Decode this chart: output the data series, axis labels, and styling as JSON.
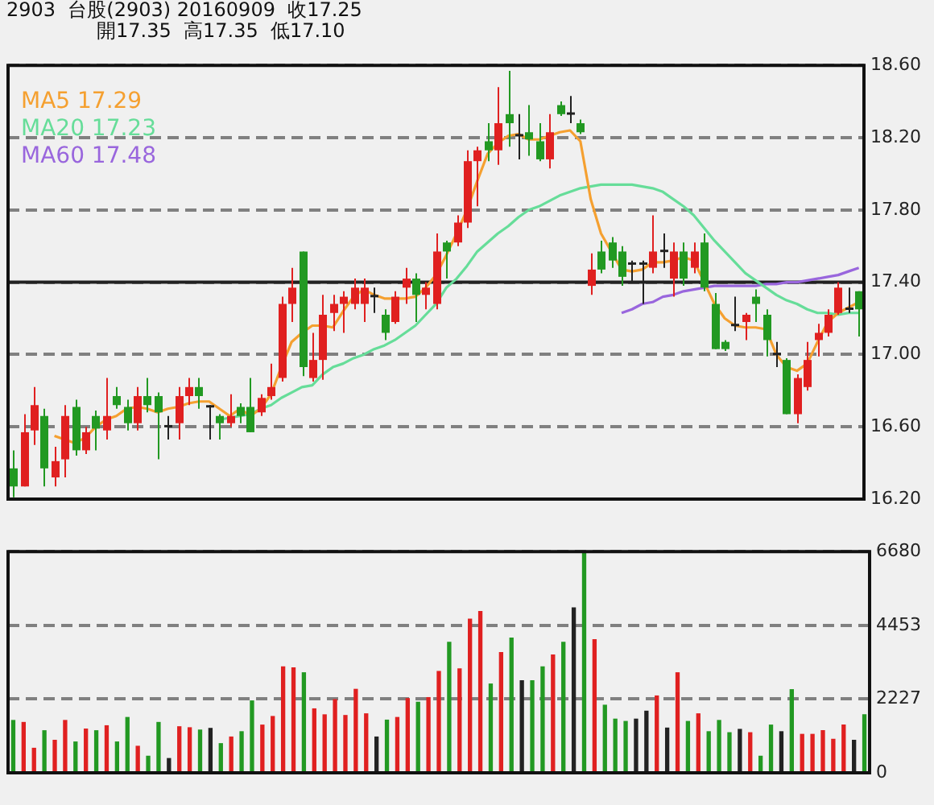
{
  "chart_data": [
    {
      "type": "candlestick",
      "title": "2903  台股(2903) 20160909  收17.25",
      "subtitle": "開17.35  高17.35  低17.10",
      "categories": [
        null,
        null,
        null,
        null,
        null,
        null,
        null,
        null,
        null,
        null,
        null,
        null,
        null,
        null,
        null,
        null,
        null,
        null,
        null,
        null,
        null,
        null,
        null,
        null,
        null,
        null,
        null,
        null,
        null,
        null,
        null,
        null,
        null,
        null,
        null,
        null,
        null,
        null,
        null,
        null,
        null,
        null,
        null,
        null,
        null,
        null,
        null,
        null,
        null,
        null,
        null,
        null,
        null,
        null,
        null,
        null,
        null,
        null,
        null,
        null,
        null,
        null,
        null,
        null,
        null,
        null,
        null,
        null,
        null,
        null,
        null,
        null,
        null,
        null,
        null,
        null,
        null,
        null,
        null,
        null,
        null,
        null,
        null
      ],
      "ohlc": [
        [
          16.37,
          16.47,
          16.21,
          16.27
        ],
        [
          16.27,
          16.67,
          16.27,
          16.57
        ],
        [
          16.58,
          16.82,
          16.5,
          16.72
        ],
        [
          16.66,
          16.7,
          16.27,
          16.37
        ],
        [
          16.32,
          16.49,
          16.27,
          16.41
        ],
        [
          16.42,
          16.72,
          16.32,
          16.66
        ],
        [
          16.71,
          16.75,
          16.44,
          16.47
        ],
        [
          16.47,
          16.6,
          16.45,
          16.57
        ],
        [
          16.66,
          16.69,
          16.47,
          16.59
        ],
        [
          16.58,
          16.87,
          16.53,
          16.66
        ],
        [
          16.77,
          16.82,
          16.7,
          16.72
        ],
        [
          16.71,
          16.75,
          16.58,
          16.62
        ],
        [
          16.62,
          16.82,
          16.58,
          16.77
        ],
        [
          16.77,
          16.87,
          16.68,
          16.72
        ],
        [
          16.77,
          16.79,
          16.42,
          16.68
        ],
        [
          16.6,
          16.66,
          16.53,
          16.61
        ],
        [
          16.62,
          16.82,
          16.53,
          16.77
        ],
        [
          16.77,
          16.87,
          16.72,
          16.82
        ],
        [
          16.82,
          16.87,
          16.7,
          16.77
        ],
        [
          16.71,
          16.72,
          16.53,
          16.72
        ],
        [
          16.66,
          16.67,
          16.53,
          16.62
        ],
        [
          16.62,
          16.78,
          16.6,
          16.66
        ],
        [
          16.71,
          16.73,
          16.62,
          16.66
        ],
        [
          16.71,
          16.87,
          16.57,
          16.57
        ],
        [
          16.68,
          16.78,
          16.66,
          16.76
        ],
        [
          16.77,
          16.95,
          16.75,
          16.82
        ],
        [
          16.87,
          17.32,
          16.85,
          17.28
        ],
        [
          17.28,
          17.48,
          17.18,
          17.37
        ],
        [
          17.57,
          17.57,
          16.88,
          16.93
        ],
        [
          16.87,
          17.12,
          16.85,
          16.97
        ],
        [
          16.97,
          17.33,
          16.86,
          17.22
        ],
        [
          17.23,
          17.33,
          17.13,
          17.28
        ],
        [
          17.28,
          17.35,
          17.12,
          17.32
        ],
        [
          17.28,
          17.42,
          17.25,
          17.37
        ],
        [
          17.28,
          17.42,
          17.18,
          17.37
        ],
        [
          17.32,
          17.37,
          17.23,
          17.33
        ],
        [
          17.22,
          17.25,
          17.08,
          17.12
        ],
        [
          17.18,
          17.35,
          17.17,
          17.32
        ],
        [
          17.37,
          17.48,
          17.28,
          17.42
        ],
        [
          17.42,
          17.45,
          17.18,
          17.33
        ],
        [
          17.33,
          17.4,
          17.25,
          17.37
        ],
        [
          17.28,
          17.67,
          17.25,
          17.57
        ],
        [
          17.62,
          17.63,
          17.42,
          17.57
        ],
        [
          17.62,
          17.77,
          17.6,
          17.73
        ],
        [
          17.73,
          18.13,
          17.7,
          18.07
        ],
        [
          18.07,
          18.15,
          17.82,
          18.13
        ],
        [
          18.18,
          18.28,
          18.07,
          18.13
        ],
        [
          18.13,
          18.48,
          18.05,
          18.28
        ],
        [
          18.33,
          18.57,
          18.15,
          18.28
        ],
        [
          18.21,
          18.33,
          18.08,
          18.22
        ],
        [
          18.23,
          18.38,
          18.1,
          18.19
        ],
        [
          18.18,
          18.28,
          18.07,
          18.08
        ],
        [
          18.08,
          18.33,
          18.03,
          18.23
        ],
        [
          18.38,
          18.4,
          18.32,
          18.33
        ],
        [
          18.33,
          18.43,
          18.28,
          18.34
        ],
        [
          18.28,
          18.3,
          18.22,
          18.23
        ],
        [
          17.38,
          17.56,
          17.33,
          17.47
        ],
        [
          17.57,
          17.63,
          17.45,
          17.47
        ],
        [
          17.62,
          17.65,
          17.48,
          17.52
        ],
        [
          17.57,
          17.6,
          17.38,
          17.43
        ],
        [
          17.5,
          17.52,
          17.4,
          17.51
        ],
        [
          17.5,
          17.52,
          17.28,
          17.51
        ],
        [
          17.48,
          17.77,
          17.45,
          17.57
        ],
        [
          17.57,
          17.67,
          17.48,
          17.58
        ],
        [
          17.42,
          17.62,
          17.32,
          17.57
        ],
        [
          17.57,
          17.62,
          17.38,
          17.42
        ],
        [
          17.48,
          17.62,
          17.45,
          17.57
        ],
        [
          17.62,
          17.67,
          17.35,
          17.37
        ],
        [
          17.28,
          17.34,
          17.03,
          17.03
        ],
        [
          17.07,
          17.08,
          17.02,
          17.03
        ],
        [
          17.16,
          17.32,
          17.13,
          17.17
        ],
        [
          17.18,
          17.23,
          17.08,
          17.22
        ],
        [
          17.32,
          17.36,
          17.18,
          17.28
        ],
        [
          17.22,
          17.25,
          16.99,
          17.08
        ],
        [
          17.0,
          17.07,
          16.93,
          17.01
        ],
        [
          16.97,
          16.98,
          16.67,
          16.67
        ],
        [
          16.67,
          16.89,
          16.62,
          16.87
        ],
        [
          16.82,
          17.07,
          16.8,
          16.97
        ],
        [
          17.08,
          17.17,
          16.99,
          17.12
        ],
        [
          17.12,
          17.25,
          17.1,
          17.22
        ],
        [
          17.23,
          17.4,
          17.22,
          17.37
        ],
        [
          17.25,
          17.37,
          17.23,
          17.26
        ],
        [
          17.35,
          17.35,
          17.1,
          17.25
        ]
      ],
      "colors": [
        "#229922",
        "#e02020",
        "#e02020",
        "#229922",
        "#e02020",
        "#e02020",
        "#229922",
        "#e02020",
        "#229922",
        "#e02020",
        "#229922",
        "#229922",
        "#e02020",
        "#229922",
        "#229922",
        "#222222",
        "#e02020",
        "#e02020",
        "#229922",
        "#222222",
        "#229922",
        "#e02020",
        "#229922",
        "#229922",
        "#e02020",
        "#e02020",
        "#e02020",
        "#e02020",
        "#229922",
        "#e02020",
        "#e02020",
        "#e02020",
        "#e02020",
        "#e02020",
        "#e02020",
        "#222222",
        "#229922",
        "#e02020",
        "#e02020",
        "#229922",
        "#e02020",
        "#e02020",
        "#229922",
        "#e02020",
        "#e02020",
        "#e02020",
        "#229922",
        "#e02020",
        "#229922",
        "#222222",
        "#229922",
        "#229922",
        "#e02020",
        "#229922",
        "#222222",
        "#229922",
        "#e02020",
        "#229922",
        "#229922",
        "#229922",
        "#222222",
        "#222222",
        "#e02020",
        "#222222",
        "#e02020",
        "#229922",
        "#e02020",
        "#229922",
        "#229922",
        "#229922",
        "#222222",
        "#e02020",
        "#229922",
        "#229922",
        "#222222",
        "#229922",
        "#e02020",
        "#e02020",
        "#e02020",
        "#e02020",
        "#e02020",
        "#222222",
        "#229922"
      ],
      "series": [
        {
          "type": "line",
          "name": "MA5 17.29",
          "color": "#f5a030",
          "values": [
            null,
            null,
            null,
            null,
            16.55,
            16.53,
            16.51,
            16.54,
            16.6,
            16.64,
            16.66,
            16.7,
            16.71,
            16.7,
            16.68,
            16.7,
            16.71,
            16.73,
            16.74,
            16.74,
            16.7,
            16.66,
            16.7,
            16.66,
            16.7,
            16.78,
            16.93,
            17.07,
            17.12,
            17.16,
            17.16,
            17.15,
            17.24,
            17.32,
            17.36,
            17.33,
            17.31,
            17.31,
            17.31,
            17.32,
            17.37,
            17.44,
            17.55,
            17.67,
            17.8,
            17.96,
            18.11,
            18.17,
            18.21,
            18.22,
            18.19,
            18.19,
            18.21,
            18.23,
            18.24,
            18.18,
            17.86,
            17.67,
            17.57,
            17.47,
            17.46,
            17.47,
            17.51,
            17.51,
            17.52,
            17.54,
            17.52,
            17.4,
            17.28,
            17.2,
            17.16,
            17.15,
            17.15,
            17.14,
            17.0,
            16.93,
            16.91,
            16.95,
            17.07,
            17.18,
            17.23,
            17.26,
            17.29
          ]
        },
        {
          "type": "line",
          "name": "MA20 17.23",
          "color": "#66dd99",
          "values": [
            null,
            null,
            null,
            null,
            null,
            null,
            null,
            null,
            null,
            null,
            null,
            null,
            null,
            null,
            null,
            null,
            null,
            null,
            null,
            null,
            16.64,
            16.65,
            16.66,
            16.67,
            16.7,
            16.72,
            16.76,
            16.79,
            16.82,
            16.83,
            16.89,
            16.93,
            16.95,
            16.98,
            17.0,
            17.03,
            17.05,
            17.08,
            17.12,
            17.16,
            17.22,
            17.28,
            17.37,
            17.42,
            17.49,
            17.57,
            17.62,
            17.67,
            17.71,
            17.76,
            17.8,
            17.82,
            17.85,
            17.88,
            17.9,
            17.92,
            17.93,
            17.94,
            17.94,
            17.94,
            17.94,
            17.93,
            17.92,
            17.9,
            17.86,
            17.82,
            17.77,
            17.7,
            17.63,
            17.57,
            17.51,
            17.45,
            17.41,
            17.37,
            17.33,
            17.3,
            17.28,
            17.25,
            17.23,
            17.23,
            17.22,
            17.23,
            17.23
          ]
        },
        {
          "type": "line",
          "name": "MA60 17.48",
          "color": "#9966dd",
          "values": [
            null,
            null,
            null,
            null,
            null,
            null,
            null,
            null,
            null,
            null,
            null,
            null,
            null,
            null,
            null,
            null,
            null,
            null,
            null,
            null,
            null,
            null,
            null,
            null,
            null,
            null,
            null,
            null,
            null,
            null,
            null,
            null,
            null,
            null,
            null,
            null,
            null,
            null,
            null,
            null,
            null,
            null,
            null,
            null,
            null,
            null,
            null,
            null,
            null,
            null,
            null,
            null,
            null,
            null,
            null,
            null,
            null,
            null,
            null,
            17.23,
            17.25,
            17.28,
            17.29,
            17.32,
            17.33,
            17.35,
            17.36,
            17.37,
            17.38,
            17.38,
            17.38,
            17.38,
            17.38,
            17.39,
            17.39,
            17.4,
            17.4,
            17.41,
            17.42,
            17.43,
            17.44,
            17.46,
            17.48
          ]
        }
      ],
      "ylim": [
        16.2,
        18.6
      ],
      "yticks": [
        {
          "value": 16.2,
          "label": "16.20"
        },
        {
          "value": 16.6,
          "label": "16.60"
        },
        {
          "value": 17.0,
          "label": "17.00"
        },
        {
          "value": 17.4,
          "label": "17.40"
        },
        {
          "value": 17.8,
          "label": "17.80"
        },
        {
          "value": 18.2,
          "label": "18.20"
        },
        {
          "value": 18.6,
          "label": "18.60"
        }
      ],
      "grid": "y",
      "legend": "top left",
      "tick_labels": "y",
      "ref_lines": [
        {
          "axis": "y",
          "value": 17.4,
          "color": "#222222",
          "line_style": "solid"
        }
      ]
    },
    {
      "type": "bar",
      "categories": [
        null,
        null,
        null,
        null,
        null,
        null,
        null,
        null,
        null,
        null,
        null,
        null,
        null,
        null,
        null,
        null,
        null,
        null,
        null,
        null,
        null,
        null,
        null,
        null,
        null,
        null,
        null,
        null,
        null,
        null,
        null,
        null,
        null,
        null,
        null,
        null,
        null,
        null,
        null,
        null,
        null,
        null,
        null,
        null,
        null,
        null,
        null,
        null,
        null,
        null,
        null,
        null,
        null,
        null,
        null,
        null,
        null,
        null,
        null,
        null,
        null,
        null,
        null,
        null,
        null,
        null,
        null,
        null,
        null,
        null,
        null,
        null,
        null,
        null,
        null,
        null,
        null,
        null,
        null,
        null,
        null,
        null,
        null
      ],
      "values": [
        1580,
        1520,
        740,
        1270,
        980,
        1580,
        930,
        1320,
        1270,
        1420,
        930,
        1670,
        800,
        500,
        1520,
        430,
        1390,
        1360,
        1290,
        1340,
        880,
        1080,
        1240,
        2170,
        1440,
        1700,
        3200,
        3170,
        3020,
        1930,
        1750,
        2210,
        1730,
        2520,
        1780,
        1080,
        1590,
        1670,
        2240,
        2130,
        2270,
        3060,
        3940,
        3140,
        4640,
        4870,
        2680,
        3630,
        4070,
        2780,
        2780,
        3200,
        3560,
        3940,
        4980,
        6650,
        4020,
        2040,
        1620,
        1550,
        1620,
        1860,
        2320,
        1350,
        3020,
        1550,
        1780,
        1240,
        1580,
        1210,
        1310,
        1210,
        500,
        1440,
        1240,
        2510,
        1160,
        1160,
        1270,
        1010,
        1440,
        980,
        1750
      ],
      "colors": [
        "#229922",
        "#e02020",
        "#e02020",
        "#229922",
        "#e02020",
        "#e02020",
        "#229922",
        "#e02020",
        "#229922",
        "#e02020",
        "#229922",
        "#229922",
        "#e02020",
        "#229922",
        "#229922",
        "#222222",
        "#e02020",
        "#e02020",
        "#229922",
        "#222222",
        "#229922",
        "#e02020",
        "#229922",
        "#229922",
        "#e02020",
        "#e02020",
        "#e02020",
        "#e02020",
        "#229922",
        "#e02020",
        "#e02020",
        "#e02020",
        "#e02020",
        "#e02020",
        "#e02020",
        "#222222",
        "#229922",
        "#e02020",
        "#e02020",
        "#229922",
        "#e02020",
        "#e02020",
        "#229922",
        "#e02020",
        "#e02020",
        "#e02020",
        "#229922",
        "#e02020",
        "#229922",
        "#222222",
        "#229922",
        "#229922",
        "#e02020",
        "#229922",
        "#222222",
        "#229922",
        "#e02020",
        "#229922",
        "#229922",
        "#229922",
        "#222222",
        "#222222",
        "#e02020",
        "#222222",
        "#e02020",
        "#229922",
        "#e02020",
        "#229922",
        "#229922",
        "#229922",
        "#222222",
        "#e02020",
        "#229922",
        "#229922",
        "#222222",
        "#229922",
        "#e02020",
        "#e02020",
        "#e02020",
        "#e02020",
        "#e02020",
        "#222222",
        "#229922"
      ],
      "ylim": [
        0,
        6680
      ],
      "yticks": [
        0,
        2227,
        4453,
        6680
      ],
      "grid": "y",
      "tick_labels": "y"
    }
  ]
}
